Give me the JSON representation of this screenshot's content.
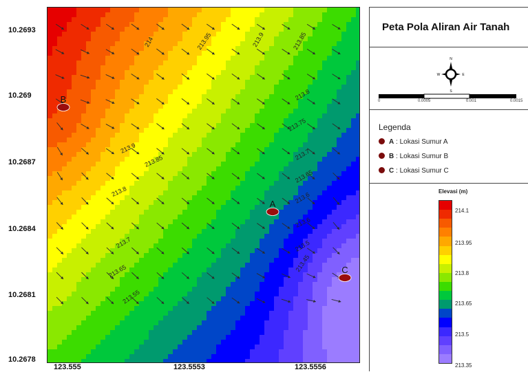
{
  "title": "Peta Pola Aliran Air Tanah",
  "y_axis_labels": [
    "10.2693",
    "10.269",
    "10.2687",
    "10.2684",
    "10.2681",
    "10.2678"
  ],
  "x_axis_labels": [
    "123.555",
    "123.5553",
    "123.5556"
  ],
  "scale_bar_labels": [
    "0",
    "0.0005",
    "0.001",
    "0.0015"
  ],
  "compass_labels": {
    "north": "N",
    "south": "S",
    "east": "E",
    "west": "W"
  },
  "legend": {
    "title": "Legenda",
    "items": [
      {
        "key": "A",
        "text": " : Lokasi Sumur A"
      },
      {
        "key": "B",
        "text": " : Lokasi Sumur B"
      },
      {
        "key": "C",
        "text": " : Lokasi Sumur C"
      }
    ]
  },
  "colorbar": {
    "title": "Elevasi (m)",
    "labels": [
      "214.1",
      "213.95",
      "213.8",
      "213.65",
      "213.5",
      "213.35"
    ],
    "colors": [
      "#e60000",
      "#ef2a00",
      "#f75a00",
      "#ff8000",
      "#ffa800",
      "#ffd000",
      "#ffff00",
      "#c8f000",
      "#8ae800",
      "#3cdc00",
      "#00c83c",
      "#009a6e",
      "#0046c8",
      "#0000ff",
      "#3c28ff",
      "#6040ff",
      "#8060ff",
      "#9b7cff"
    ]
  },
  "wells": [
    {
      "label": "A"
    },
    {
      "label": "B"
    },
    {
      "label": "C"
    }
  ],
  "contour_labels": [
    "214",
    "213.95",
    "213.9",
    "213.85",
    "213.8",
    "213.75",
    "213.9",
    "213.85",
    "213.7",
    "213.8",
    "213.65",
    "213.6",
    "213.7",
    "213.65",
    "213.6",
    "213.55",
    "213.5",
    "213.45"
  ],
  "map_colors": {
    "well_marker": "#9b0d0d",
    "arrow": "#2b2b2b"
  }
}
